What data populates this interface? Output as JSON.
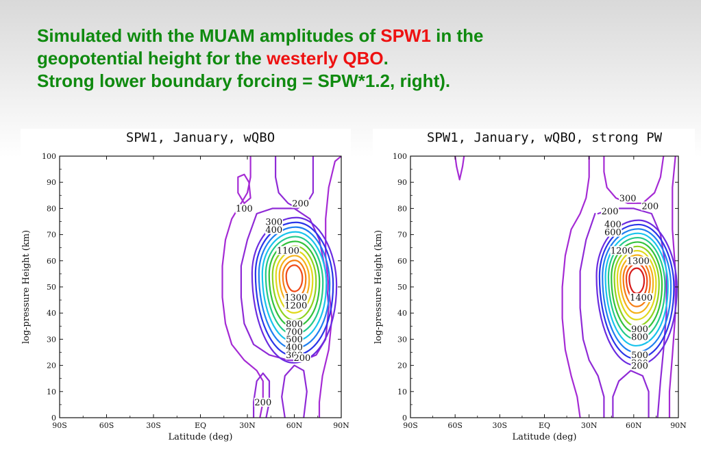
{
  "slide": {
    "title_lines": [
      [
        {
          "text": "Simulated with the MUAM amplitudes of ",
          "color": "green"
        },
        {
          "text": "SPW1",
          "color": "red"
        },
        {
          "text": " in the",
          "color": "green"
        }
      ],
      [
        {
          "text": "geopotential height for the ",
          "color": "green"
        },
        {
          "text": "westerly QBO",
          "color": "red"
        },
        {
          "text": ".",
          "color": "green"
        }
      ],
      [
        {
          "text": "Strong lower boundary forcing = SPW*1.2, right).",
          "color": "green"
        }
      ]
    ],
    "colors": {
      "green": "#0f8a0f",
      "red": "#ee1111"
    }
  },
  "chart_data": [
    {
      "type": "contour",
      "title": "SPW1, January, wQBO",
      "xlabel": "Latitude (deg)",
      "ylabel": "log-pressure Height (km)",
      "x_ticks": [
        "90S",
        "60S",
        "30S",
        "EQ",
        "30N",
        "60N",
        "90N"
      ],
      "x_range": [
        -90,
        90
      ],
      "y_ticks": [
        0,
        10,
        20,
        30,
        40,
        50,
        60,
        70,
        80,
        90,
        100
      ],
      "y_range": [
        0,
        100
      ],
      "contour_interval": 100,
      "contour_levels": [
        100,
        200,
        300,
        400,
        500,
        600,
        700,
        800,
        900,
        1000,
        1100,
        1200,
        1300
      ],
      "maximum": {
        "lat": 60,
        "height": 54
      },
      "contour_labels": [
        {
          "text": "100",
          "lat": 28,
          "height": 79
        },
        {
          "text": "200",
          "lat": 64,
          "height": 81
        },
        {
          "text": "300",
          "lat": 47,
          "height": 74
        },
        {
          "text": "400",
          "lat": 47,
          "height": 71
        },
        {
          "text": "1100",
          "lat": 56,
          "height": 63
        },
        {
          "text": "1300",
          "lat": 61,
          "height": 45
        },
        {
          "text": "1200",
          "lat": 61,
          "height": 42
        },
        {
          "text": "800",
          "lat": 60,
          "height": 35
        },
        {
          "text": "700",
          "lat": 60,
          "height": 32
        },
        {
          "text": "500",
          "lat": 60,
          "height": 29
        },
        {
          "text": "400",
          "lat": 60,
          "height": 26
        },
        {
          "text": "300",
          "lat": 60,
          "height": 23
        },
        {
          "text": "200",
          "lat": 65,
          "height": 22
        },
        {
          "text": "200",
          "lat": 40,
          "height": 5
        }
      ]
    },
    {
      "type": "contour",
      "title": "SPW1, January, wQBO, strong PW",
      "xlabel": "Latitude (deg)",
      "ylabel": "log-pressure Height (km)",
      "x_ticks": [
        "90S",
        "60S",
        "30S",
        "EQ",
        "30N",
        "60N",
        "90N"
      ],
      "x_range": [
        -90,
        90
      ],
      "y_ticks": [
        0,
        10,
        20,
        30,
        40,
        50,
        60,
        70,
        80,
        90,
        100
      ],
      "y_range": [
        0,
        100
      ],
      "contour_interval": 100,
      "contour_levels": [
        100,
        200,
        300,
        400,
        500,
        600,
        700,
        800,
        900,
        1000,
        1100,
        1200,
        1300,
        1400
      ],
      "maximum": {
        "lat": 62,
        "height": 53
      },
      "contour_labels": [
        {
          "text": "300",
          "lat": 56,
          "height": 83
        },
        {
          "text": "200",
          "lat": 44,
          "height": 78
        },
        {
          "text": "200",
          "lat": 71,
          "height": 80
        },
        {
          "text": "400",
          "lat": 46,
          "height": 73
        },
        {
          "text": "600",
          "lat": 46,
          "height": 70
        },
        {
          "text": "1200",
          "lat": 52,
          "height": 63
        },
        {
          "text": "1300",
          "lat": 63,
          "height": 59
        },
        {
          "text": "1400",
          "lat": 65,
          "height": 45
        },
        {
          "text": "900",
          "lat": 64,
          "height": 33
        },
        {
          "text": "800",
          "lat": 64,
          "height": 30
        },
        {
          "text": "500",
          "lat": 64,
          "height": 23
        },
        {
          "text": "300",
          "lat": 64,
          "height": 20
        },
        {
          "text": "200",
          "lat": 64,
          "height": 19
        }
      ]
    }
  ]
}
